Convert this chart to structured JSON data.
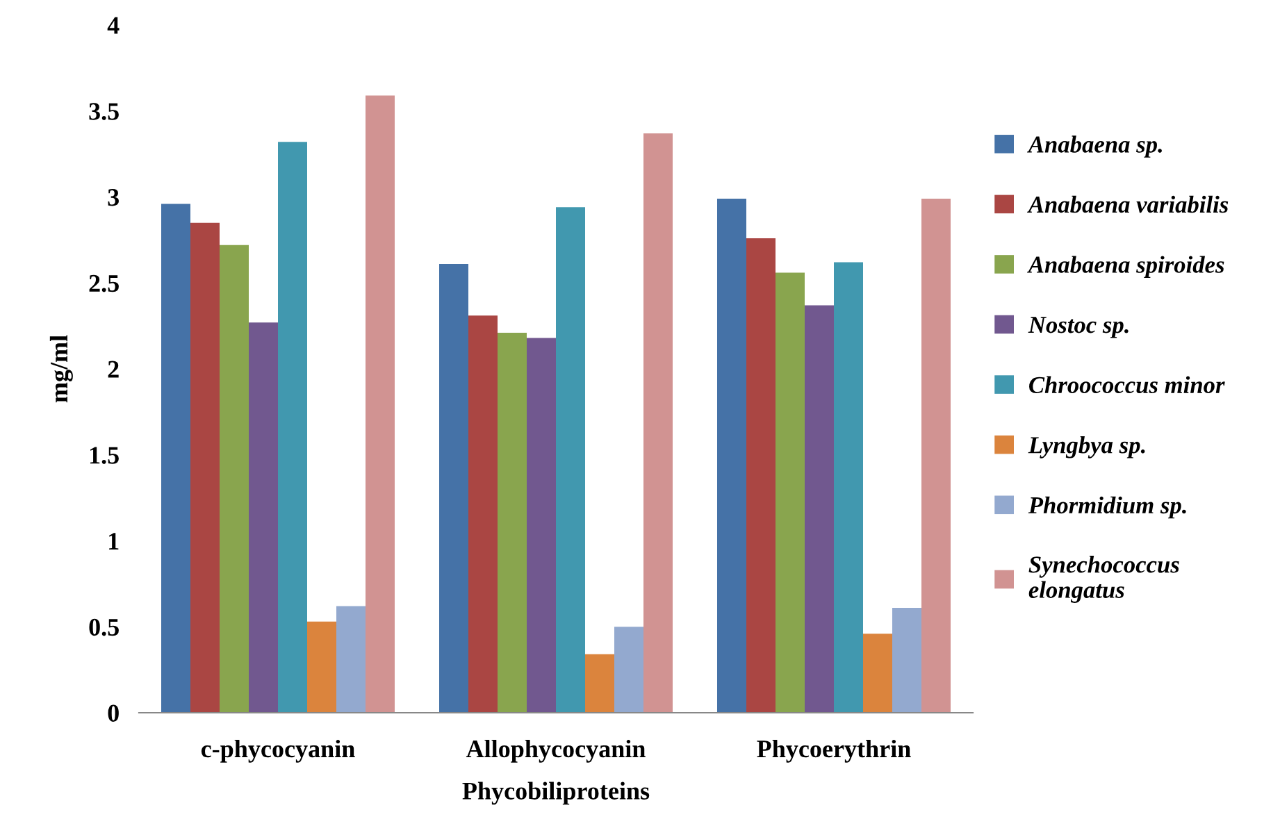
{
  "chart_data": {
    "type": "bar",
    "xlabel": "Phycobiliproteins",
    "ylabel": "mg/ml",
    "categories": [
      "c-phycocyanin",
      "Allophycocyanin",
      "Phycoerythrin"
    ],
    "series": [
      {
        "name": "Anabaena sp.",
        "color": "#4572a7",
        "values": [
          2.96,
          2.61,
          2.99
        ]
      },
      {
        "name": "Anabaena variabilis",
        "color": "#aa4643",
        "values": [
          2.85,
          2.31,
          2.76
        ]
      },
      {
        "name": "Anabaena spiroides",
        "color": "#89a54e",
        "values": [
          2.72,
          2.21,
          2.56
        ]
      },
      {
        "name": "Nostoc sp.",
        "color": "#71588f",
        "values": [
          2.27,
          2.18,
          2.37
        ]
      },
      {
        "name": "Chroococcus minor",
        "color": "#4198af",
        "values": [
          3.32,
          2.94,
          2.62
        ]
      },
      {
        "name": "Lyngbya sp.",
        "color": "#db843d",
        "values": [
          0.53,
          0.34,
          0.46
        ]
      },
      {
        "name": "Phormidium sp.",
        "color": "#93a9cf",
        "values": [
          0.62,
          0.5,
          0.61
        ]
      },
      {
        "name": "Synechococcus\nelongatus",
        "color": "#d19392",
        "values": [
          3.59,
          3.37,
          2.99
        ]
      }
    ],
    "ylim": [
      0,
      4
    ],
    "yticks": [
      0,
      0.5,
      1,
      1.5,
      2,
      2.5,
      3,
      3.5,
      4
    ],
    "grid": false,
    "legend": "right"
  }
}
